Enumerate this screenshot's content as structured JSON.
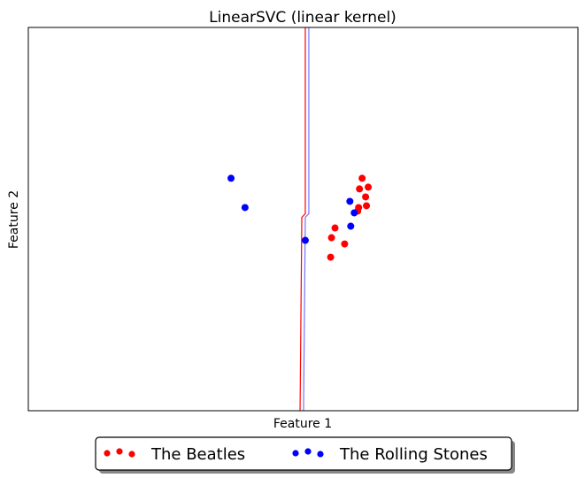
{
  "chart_data": {
    "type": "scatter",
    "title": "LinearSVC (linear kernel)",
    "xlabel": "Feature 1",
    "ylabel": "Feature 2",
    "xlim": [
      0,
      629
    ],
    "ylim": [
      0,
      432
    ],
    "grid": false,
    "ticks": false,
    "legend_position": "bottom-center",
    "series": [
      {
        "name": "The Beatles",
        "color": "#ff0000",
        "points": [
          [
            382,
            262
          ],
          [
            389,
            252
          ],
          [
            379,
            250
          ],
          [
            386,
            241
          ],
          [
            387,
            231
          ],
          [
            378,
            229
          ],
          [
            377,
            225
          ],
          [
            351,
            206
          ],
          [
            347,
            195
          ],
          [
            362,
            188
          ],
          [
            346,
            173
          ]
        ]
      },
      {
        "name": "The Rolling Stones",
        "color": "#0000ff",
        "points": [
          [
            232,
            262
          ],
          [
            248,
            229
          ],
          [
            368,
            236
          ],
          [
            373,
            223
          ],
          [
            369,
            208
          ],
          [
            317,
            192
          ]
        ]
      }
    ],
    "decision_boundaries": [
      {
        "color": "#ff0000",
        "points": [
          [
            317,
            432
          ],
          [
            317,
            222
          ],
          [
            313,
            218
          ],
          [
            311,
            0
          ]
        ]
      },
      {
        "color": "#0000ff",
        "points": [
          [
            321,
            432
          ],
          [
            321,
            222
          ],
          [
            317,
            218
          ],
          [
            315,
            0
          ]
        ]
      }
    ]
  }
}
